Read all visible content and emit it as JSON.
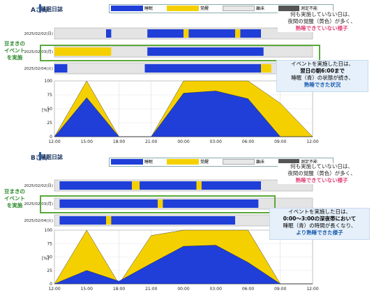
{
  "panels": [
    {
      "id": "A",
      "subject": "Aさん",
      "title": "睡眠日誌",
      "legend": [
        {
          "label": "睡眠",
          "color": "#1f3fd8"
        },
        {
          "label": "覚醒",
          "color": "#f5d000"
        },
        {
          "label": "離床",
          "color": "#e8e8e8"
        },
        {
          "label": "測定不能",
          "color": "#555555"
        }
      ],
      "rows": [
        "2025/02/02(日)",
        "2025/02/03(月)",
        "2025/02/04(火)"
      ],
      "time_ticks": [
        "12:00",
        "15:00",
        "18:00",
        "21:00",
        "00:00",
        "03:00",
        "06:00",
        "09:00",
        "12:00"
      ],
      "y_ticks": [
        "100",
        "75",
        "50",
        "25",
        "0"
      ],
      "y_unit": "[%]",
      "event_tag": "豆まきの\nイベント\nを実施",
      "callout_top": {
        "l1": "何も実施していない日は、",
        "l2": "夜間の覚醒（黄色）が多く、",
        "l3": "熟睡できていない様子"
      },
      "callout_mid": {
        "l1": "イベントを実施した日は、",
        "l2": "翌日の朝6:00まで",
        "l3": "睡眠（青）の状態が続き、",
        "l4": "熟睡できた状況"
      }
    },
    {
      "id": "B",
      "subject": "Bさん",
      "title": "睡眠日誌",
      "legend": [
        {
          "label": "睡眠",
          "color": "#1f3fd8"
        },
        {
          "label": "覚醒",
          "color": "#f5d000"
        },
        {
          "label": "離床",
          "color": "#e8e8e8"
        },
        {
          "label": "測定不能",
          "color": "#555555"
        }
      ],
      "rows": [
        "2025/02/02(日)",
        "2025/02/03(月)",
        "2025/02/04(火)"
      ],
      "time_ticks": [
        "12:00",
        "15:00",
        "18:00",
        "21:00",
        "00:00",
        "03:00",
        "06:00",
        "09:00",
        "12:00"
      ],
      "y_ticks": [
        "100",
        "75",
        "50",
        "25",
        "0"
      ],
      "y_unit": "[%]",
      "event_tag": "豆まきの\nイベント\nを実施",
      "callout_top": {
        "l1": "何も実施していない日は、",
        "l2": "夜間の覚醒（黄色）が多く、",
        "l3": "熟睡できていない様子"
      },
      "callout_mid": {
        "l1": "イベントを実施した日は、",
        "l2": "0:00～3:00の深夜帯において",
        "l3": "睡眠（青）の時間が長くなり、",
        "l4": "より熟睡できた様子"
      }
    }
  ],
  "chart_data": [
    {
      "type": "area",
      "title": "睡眠日誌",
      "x": [
        "12:00",
        "15:00",
        "18:00",
        "21:00",
        "00:00",
        "03:00",
        "06:00",
        "09:00",
        "12:00"
      ],
      "ylim": [
        0,
        100
      ],
      "ylabel": "[%]",
      "series": [
        {
          "name": "睡眠",
          "values": [
            0,
            70,
            0,
            0,
            78,
            82,
            68,
            0,
            0
          ]
        },
        {
          "name": "覚醒",
          "values": [
            0,
            100,
            0,
            0,
            100,
            100,
            100,
            60,
            0
          ]
        }
      ]
    },
    {
      "type": "area",
      "title": "睡眠日誌",
      "x": [
        "12:00",
        "15:00",
        "18:00",
        "21:00",
        "00:00",
        "03:00",
        "06:00",
        "09:00",
        "12:00"
      ],
      "ylim": [
        0,
        100
      ],
      "ylabel": "[%]",
      "series": [
        {
          "name": "睡眠",
          "values": [
            0,
            25,
            5,
            38,
            70,
            72,
            40,
            0,
            0
          ]
        },
        {
          "name": "覚醒",
          "values": [
            0,
            100,
            0,
            90,
            100,
            100,
            100,
            0,
            0
          ]
        }
      ]
    }
  ]
}
